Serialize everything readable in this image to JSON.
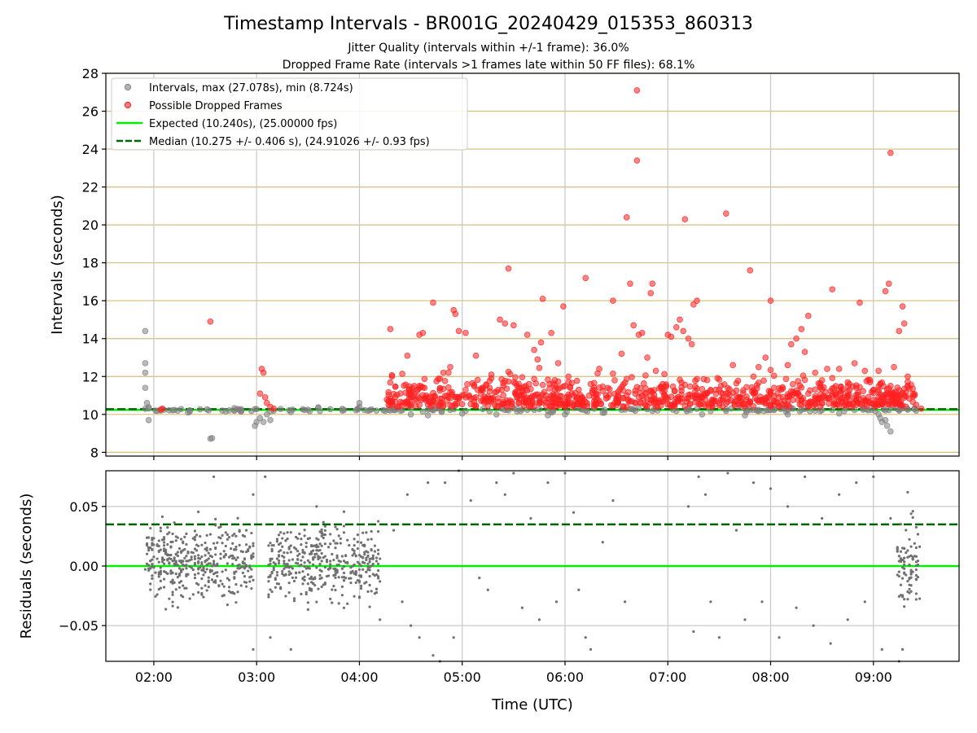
{
  "chart_data": [
    {
      "type": "scatter",
      "title": "Timestamp Intervals - BR001G_20240429_015353_860313",
      "subtitle_1": "Jitter Quality (intervals within +/-1 frame): 36.0%",
      "subtitle_2": "Dropped Frame Rate (intervals >1 frames late within 50 FF files): 68.1%",
      "ylabel": "Intervals (seconds)",
      "xlim": [
        "01:32",
        "09:50"
      ],
      "ylim": [
        7.8,
        28
      ],
      "x_ticks": [
        "02:00",
        "03:00",
        "04:00",
        "05:00",
        "06:00",
        "07:00",
        "08:00",
        "09:00"
      ],
      "y_ticks": [
        "8",
        "10",
        "12",
        "14",
        "16",
        "18",
        "20",
        "22",
        "24",
        "26",
        "28"
      ],
      "hgrid_color": "#d4be7a",
      "vgrid_color": "#c8c8c8",
      "legend_position": "top-left",
      "legend": [
        "Intervals, max (27.078s), min (8.724s)",
        "Possible Dropped Frames",
        "Expected (10.240s), (25.00000 fps)",
        "Median (10.275 +/- 0.406 s), (24.91026 +/- 0.93 fps)"
      ],
      "expected_interval": 10.24,
      "median_interval": 10.275,
      "max_interval": 27.078,
      "min_interval": 8.724,
      "series": [
        {
          "name": "Intervals, max (27.078s), min (8.724s)",
          "color": "#808080",
          "points": [
            [
              "01:55",
              14.4
            ],
            [
              "01:55",
              12.7
            ],
            [
              "01:55",
              12.2
            ],
            [
              "01:55",
              11.4
            ],
            [
              "01:56",
              10.6
            ],
            [
              "01:57",
              9.7
            ],
            [
              "02:33",
              8.72
            ],
            [
              "02:34",
              8.75
            ],
            [
              "02:20",
              10.1
            ],
            [
              "02:40",
              10.2
            ],
            [
              "02:50",
              10.25
            ],
            [
              "02:59",
              9.4
            ],
            [
              "03:00",
              9.6
            ],
            [
              "03:02",
              9.8
            ],
            [
              "03:04",
              9.6
            ],
            [
              "03:06",
              10.0
            ],
            [
              "03:08",
              9.7
            ],
            [
              "03:30",
              10.25
            ],
            [
              "03:50",
              10.2
            ],
            [
              "04:00",
              10.6
            ],
            [
              "04:00",
              10.4
            ],
            [
              "04:10",
              10.2
            ],
            [
              "04:30",
              10.0
            ],
            [
              "04:40",
              9.95
            ],
            [
              "05:00",
              10.05
            ],
            [
              "05:20",
              10.0
            ],
            [
              "05:50",
              9.95
            ],
            [
              "06:00",
              10.0
            ],
            [
              "07:20",
              10.0
            ],
            [
              "07:45",
              9.95
            ],
            [
              "08:10",
              10.0
            ],
            [
              "08:40",
              10.05
            ],
            [
              "09:03",
              10.0
            ],
            [
              "09:04",
              9.8
            ],
            [
              "09:05",
              9.6
            ],
            [
              "09:07",
              9.7
            ],
            [
              "09:08",
              9.4
            ],
            [
              "09:10",
              9.1
            ],
            [
              "09:15",
              10.2
            ],
            [
              "09:20",
              10.25
            ],
            [
              "09:25",
              10.2
            ]
          ]
        },
        {
          "name": "Possible Dropped Frames",
          "color": "#ff2020",
          "points": [
            [
              "02:04",
              10.25
            ],
            [
              "02:05",
              10.3
            ],
            [
              "02:33",
              14.9
            ],
            [
              "03:03",
              12.4
            ],
            [
              "03:04",
              12.2
            ],
            [
              "03:02",
              11.1
            ],
            [
              "03:05",
              10.9
            ],
            [
              "03:06",
              10.6
            ],
            [
              "03:08",
              10.4
            ],
            [
              "03:10",
              10.3
            ],
            [
              "04:18",
              14.5
            ],
            [
              "04:22",
              10.4
            ],
            [
              "04:25",
              10.6
            ],
            [
              "04:28",
              13.1
            ],
            [
              "04:35",
              14.2
            ],
            [
              "04:37",
              14.3
            ],
            [
              "04:38",
              11.4
            ],
            [
              "04:43",
              15.9
            ],
            [
              "04:47",
              10.6
            ],
            [
              "04:49",
              12.2
            ],
            [
              "04:52",
              12.2
            ],
            [
              "04:53",
              12.5
            ],
            [
              "04:55",
              15.5
            ],
            [
              "04:56",
              15.3
            ],
            [
              "04:58",
              14.4
            ],
            [
              "05:02",
              14.3
            ],
            [
              "05:08",
              13.1
            ],
            [
              "05:17",
              12.1
            ],
            [
              "05:22",
              15.0
            ],
            [
              "05:25",
              14.8
            ],
            [
              "05:27",
              17.7
            ],
            [
              "05:30",
              14.7
            ],
            [
              "05:38",
              14.2
            ],
            [
              "05:39",
              11.6
            ],
            [
              "05:42",
              13.4
            ],
            [
              "05:44",
              12.9
            ],
            [
              "05:46",
              13.8
            ],
            [
              "05:47",
              16.1
            ],
            [
              "05:52",
              14.3
            ],
            [
              "05:56",
              12.7
            ],
            [
              "05:59",
              15.7
            ],
            [
              "06:00",
              10.4
            ],
            [
              "06:02",
              10.6
            ],
            [
              "06:05",
              10.5
            ],
            [
              "06:08",
              11.3
            ],
            [
              "06:10",
              10.9
            ],
            [
              "06:12",
              17.2
            ],
            [
              "06:15",
              11.6
            ],
            [
              "06:18",
              10.8
            ],
            [
              "06:20",
              12.4
            ],
            [
              "06:25",
              11.4
            ],
            [
              "06:28",
              16.0
            ],
            [
              "06:33",
              13.2
            ],
            [
              "06:36",
              20.4
            ],
            [
              "06:38",
              16.9
            ],
            [
              "06:40",
              14.7
            ],
            [
              "06:42",
              23.4
            ],
            [
              "06:42",
              27.1
            ],
            [
              "06:43",
              14.2
            ],
            [
              "06:45",
              14.3
            ],
            [
              "06:48",
              13.0
            ],
            [
              "06:50",
              16.4
            ],
            [
              "06:51",
              16.9
            ],
            [
              "06:53",
              12.3
            ],
            [
              "06:57",
              11.6
            ],
            [
              "07:00",
              14.2
            ],
            [
              "07:02",
              14.1
            ],
            [
              "07:05",
              14.6
            ],
            [
              "07:07",
              15.0
            ],
            [
              "07:09",
              14.4
            ],
            [
              "07:10",
              20.3
            ],
            [
              "07:12",
              14.0
            ],
            [
              "07:14",
              13.7
            ],
            [
              "07:15",
              15.8
            ],
            [
              "07:17",
              16.0
            ],
            [
              "07:22",
              11.1
            ],
            [
              "07:25",
              10.6
            ],
            [
              "07:28",
              11.3
            ],
            [
              "07:34",
              20.6
            ],
            [
              "07:38",
              12.6
            ],
            [
              "07:42",
              10.9
            ],
            [
              "07:48",
              17.6
            ],
            [
              "07:50",
              12.0
            ],
            [
              "07:53",
              12.5
            ],
            [
              "07:57",
              13.0
            ],
            [
              "08:00",
              16.0
            ],
            [
              "08:04",
              11.1
            ],
            [
              "08:10",
              12.6
            ],
            [
              "08:12",
              13.7
            ],
            [
              "08:15",
              14.0
            ],
            [
              "08:18",
              14.5
            ],
            [
              "08:20",
              13.3
            ],
            [
              "08:22",
              15.2
            ],
            [
              "08:26",
              12.2
            ],
            [
              "08:30",
              11.8
            ],
            [
              "08:33",
              12.4
            ],
            [
              "08:36",
              16.6
            ],
            [
              "08:40",
              12.4
            ],
            [
              "08:45",
              11.0
            ],
            [
              "08:49",
              12.7
            ],
            [
              "08:52",
              15.9
            ],
            [
              "08:55",
              12.3
            ],
            [
              "08:58",
              11.7
            ],
            [
              "09:03",
              12.3
            ],
            [
              "09:07",
              16.5
            ],
            [
              "09:09",
              16.9
            ],
            [
              "09:10",
              23.8
            ],
            [
              "09:12",
              12.5
            ],
            [
              "09:15",
              14.4
            ],
            [
              "09:17",
              15.7
            ],
            [
              "09:18",
              14.8
            ],
            [
              "09:20",
              12.0
            ],
            [
              "09:25",
              10.5
            ],
            [
              "09:28",
              10.3
            ]
          ]
        }
      ],
      "bands": [
        {
          "name": "Intervals, max (27.078s), min (8.724s)",
          "from": "01:55",
          "to": "09:28",
          "mean": 10.24,
          "spread": 0.06,
          "count": 180
        },
        {
          "name": "Possible Dropped Frames",
          "from": "04:16",
          "to": "09:24",
          "mean": 10.9,
          "spread": 0.7,
          "count": 900
        }
      ]
    },
    {
      "type": "scatter",
      "xlabel": "Time (UTC)",
      "ylabel": "Residuals (seconds)",
      "xlim": [
        "01:32",
        "09:50"
      ],
      "ylim": [
        -0.08,
        0.08
      ],
      "y_ticks": [
        "0.05",
        "0.00",
        "−0.05"
      ],
      "grid": true,
      "zero_line": 0.0,
      "median_offset_line": 0.035,
      "series": [
        {
          "name": "Residuals",
          "color": "#707070",
          "points": [
            [
              "02:35",
              0.075
            ],
            [
              "02:58",
              0.06
            ],
            [
              "03:05",
              0.075
            ],
            [
              "02:58",
              -0.07
            ],
            [
              "03:08",
              -0.06
            ],
            [
              "03:20",
              -0.07
            ],
            [
              "03:35",
              0.05
            ],
            [
              "04:12",
              -0.045
            ],
            [
              "04:20",
              0.03
            ],
            [
              "04:25",
              -0.03
            ],
            [
              "04:28",
              0.06
            ],
            [
              "04:30",
              -0.05
            ],
            [
              "04:35",
              -0.06
            ],
            [
              "04:40",
              0.07
            ],
            [
              "04:43",
              -0.075
            ],
            [
              "04:47",
              -0.08
            ],
            [
              "04:50",
              0.07
            ],
            [
              "04:55",
              -0.06
            ],
            [
              "04:58",
              0.08
            ],
            [
              "05:05",
              0.055
            ],
            [
              "05:10",
              -0.01
            ],
            [
              "05:15",
              -0.02
            ],
            [
              "05:20",
              0.07
            ],
            [
              "05:25",
              0.06
            ],
            [
              "05:30",
              0.078
            ],
            [
              "05:35",
              -0.035
            ],
            [
              "05:40",
              0.04
            ],
            [
              "05:45",
              -0.045
            ],
            [
              "05:50",
              0.07
            ],
            [
              "05:55",
              -0.03
            ],
            [
              "06:00",
              0.078
            ],
            [
              "06:05",
              0.045
            ],
            [
              "06:08",
              -0.02
            ],
            [
              "06:12",
              -0.06
            ],
            [
              "06:15",
              -0.07
            ],
            [
              "06:22",
              0.02
            ],
            [
              "06:28",
              0.055
            ],
            [
              "06:35",
              -0.03
            ],
            [
              "07:12",
              0.05
            ],
            [
              "07:15",
              -0.055
            ],
            [
              "07:18",
              0.075
            ],
            [
              "07:22",
              0.06
            ],
            [
              "07:25",
              -0.03
            ],
            [
              "07:30",
              -0.06
            ],
            [
              "07:35",
              0.078
            ],
            [
              "07:40",
              0.03
            ],
            [
              "07:45",
              -0.045
            ],
            [
              "07:50",
              0.07
            ],
            [
              "07:55",
              -0.03
            ],
            [
              "08:00",
              0.065
            ],
            [
              "08:05",
              -0.06
            ],
            [
              "08:10",
              0.05
            ],
            [
              "08:15",
              -0.035
            ],
            [
              "08:20",
              0.075
            ],
            [
              "08:25",
              -0.05
            ],
            [
              "08:30",
              0.04
            ],
            [
              "08:35",
              -0.065
            ],
            [
              "08:40",
              0.06
            ],
            [
              "08:45",
              -0.045
            ],
            [
              "08:50",
              0.07
            ],
            [
              "08:55",
              -0.03
            ],
            [
              "09:00",
              0.075
            ],
            [
              "09:05",
              -0.07
            ],
            [
              "09:10",
              0.04
            ],
            [
              "09:20",
              0.062
            ],
            [
              "09:17",
              -0.07
            ],
            [
              "09:15",
              -0.08
            ]
          ]
        }
      ],
      "bands": [
        {
          "name": "Residuals",
          "from": "01:55",
          "to": "02:58",
          "mean": 0.003,
          "spread": 0.015,
          "count": 420
        },
        {
          "name": "Residuals",
          "from": "03:07",
          "to": "04:12",
          "mean": 0.003,
          "spread": 0.015,
          "count": 420
        },
        {
          "name": "Residuals",
          "from": "09:14",
          "to": "09:27",
          "mean": 0.0,
          "spread": 0.016,
          "count": 90
        }
      ]
    }
  ]
}
